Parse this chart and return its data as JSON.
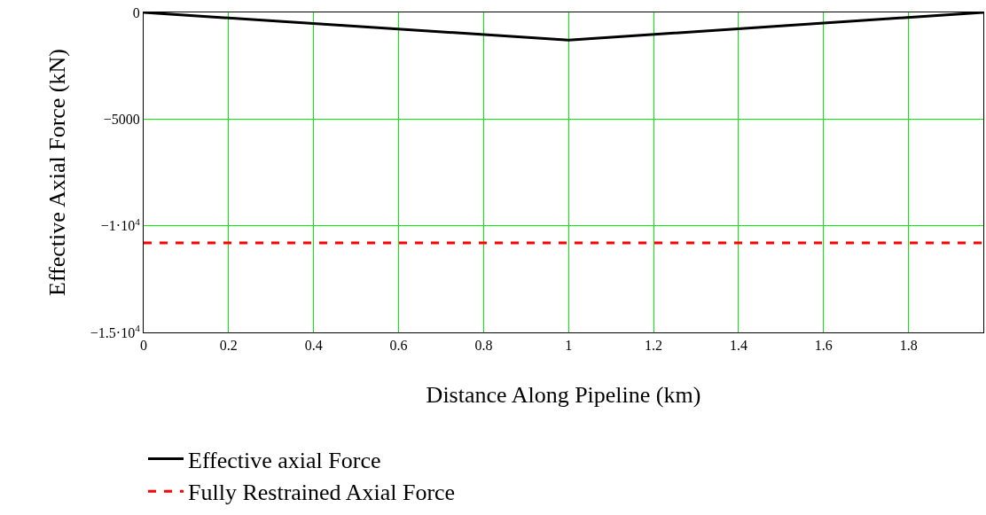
{
  "chart_data": {
    "type": "line",
    "xlabel": "Distance Along Pipeline (km)",
    "ylabel": "Effective Axial Force (kN)",
    "series": [
      {
        "name": "Effective axial Force",
        "color": "#000000",
        "x": [
          0,
          1,
          1.976
        ],
        "values": [
          0,
          -1300,
          0
        ],
        "line_style": "solid"
      },
      {
        "name": "Fully Restrained Axial Force",
        "color": "#ff0000",
        "x": [
          0,
          1.976
        ],
        "values": [
          -10800,
          -10800
        ],
        "line_style": "dashed"
      }
    ],
    "xlim": [
      0,
      1.976
    ],
    "xticks": [
      0,
      0.2,
      0.4,
      0.6,
      0.8,
      1,
      1.2,
      1.4,
      1.6,
      1.8
    ],
    "ylim": [
      -15000,
      0
    ],
    "yticks": [
      {
        "value": -15000,
        "label": "−1.5·10$^{4}$"
      },
      {
        "value": -10000,
        "label": "−1·10$^{4}$"
      },
      {
        "value": -5000,
        "label": "−5000"
      },
      0
    ],
    "grid": true,
    "legend": "bottom left",
    "marker": "none"
  }
}
